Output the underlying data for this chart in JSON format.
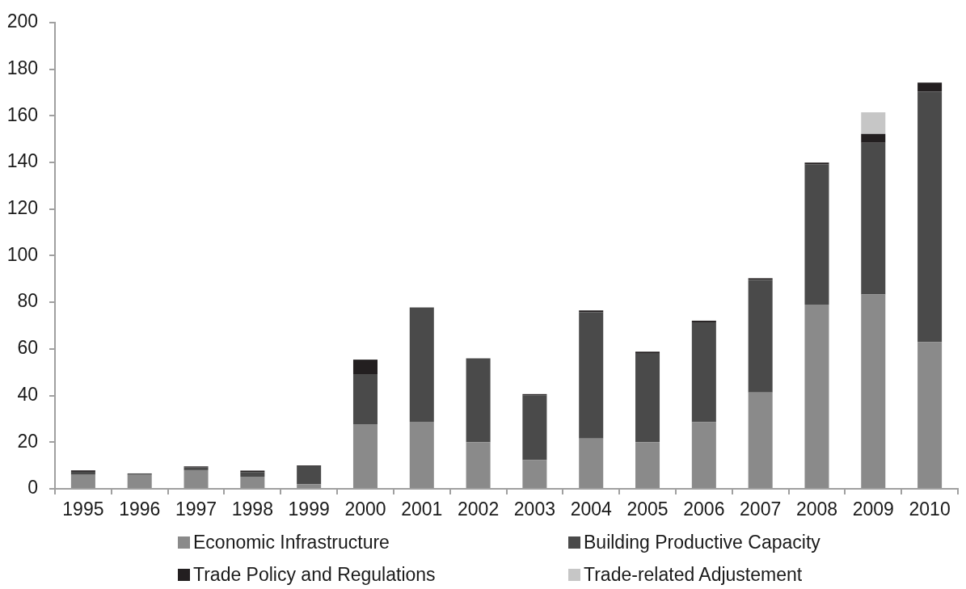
{
  "chart_data": {
    "type": "bar",
    "stacked": true,
    "categories": [
      "1995",
      "1996",
      "1997",
      "1998",
      "1999",
      "2000",
      "2001",
      "2002",
      "2003",
      "2004",
      "2005",
      "2006",
      "2007",
      "2008",
      "2009",
      "2010"
    ],
    "series": [
      {
        "name": "Economic Infrastructure",
        "color": "#8a8a8a",
        "values": [
          6,
          6,
          8,
          5.2,
          2,
          27.7,
          28.8,
          20,
          12.3,
          21.6,
          20,
          28.6,
          41.3,
          79,
          83.3,
          62.9
        ]
      },
      {
        "name": "Building Productive Capacity",
        "color": "#4a4a4a",
        "values": [
          1.3,
          0.6,
          1.3,
          2,
          7.7,
          21.5,
          49,
          36,
          27.8,
          54.2,
          38.2,
          42.8,
          48.3,
          60.2,
          65.1,
          107.5
        ]
      },
      {
        "name": "Trade Policy and Regulations",
        "color": "#231f20",
        "values": [
          0.6,
          0,
          0.3,
          0.6,
          0.3,
          6.2,
          0,
          0,
          0.5,
          0.7,
          0.6,
          0.7,
          0.7,
          0.7,
          3.8,
          3.8
        ]
      },
      {
        "name": "Trade-related Adjustement",
        "color": "#c6c6c6",
        "values": [
          0,
          0,
          0,
          0,
          0,
          0,
          0,
          0,
          0,
          0,
          0,
          0,
          0,
          0,
          9.3,
          0
        ]
      }
    ],
    "ylim": [
      0,
      200
    ],
    "yticks": [
      0,
      20,
      40,
      60,
      80,
      100,
      120,
      140,
      160,
      180,
      200
    ],
    "grid": false,
    "legend": "bottom"
  }
}
